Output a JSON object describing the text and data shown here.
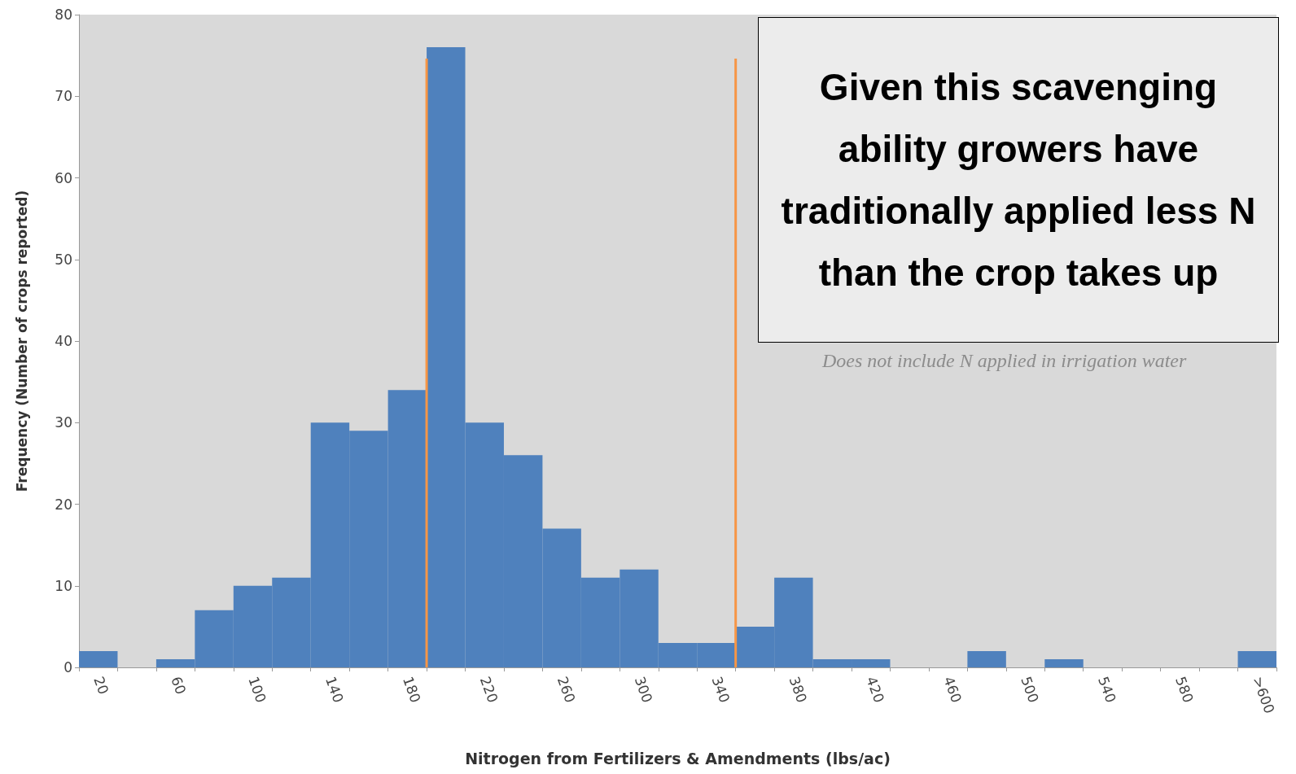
{
  "chart_data": {
    "type": "bar",
    "xlabel": "Nitrogen from Fertilizers & Amendments (lbs/ac)",
    "ylabel": "Frequency (Number of crops reported)",
    "categories": [
      "20",
      null,
      "60",
      null,
      "100",
      null,
      "140",
      null,
      "180",
      null,
      "220",
      null,
      "260",
      null,
      "300",
      null,
      "340",
      null,
      "380",
      null,
      "420",
      null,
      "460",
      null,
      "500",
      null,
      "540",
      null,
      "580",
      null,
      ">600"
    ],
    "values": [
      2,
      0,
      1,
      7,
      10,
      11,
      30,
      29,
      34,
      76,
      30,
      26,
      17,
      11,
      12,
      3,
      3,
      5,
      11,
      1,
      1,
      0,
      0,
      2,
      0,
      1,
      0,
      0,
      0,
      0,
      2
    ],
    "color": "#4f81bd",
    "ylim": [
      0,
      80
    ],
    "yticks": [
      0,
      10,
      20,
      30,
      40,
      50,
      60,
      70,
      80
    ],
    "annotations": [
      "Does not include N applied in irrigation water",
      "Given this scavenging ability growers have traditionally applied less N than the crop takes up"
    ]
  }
}
